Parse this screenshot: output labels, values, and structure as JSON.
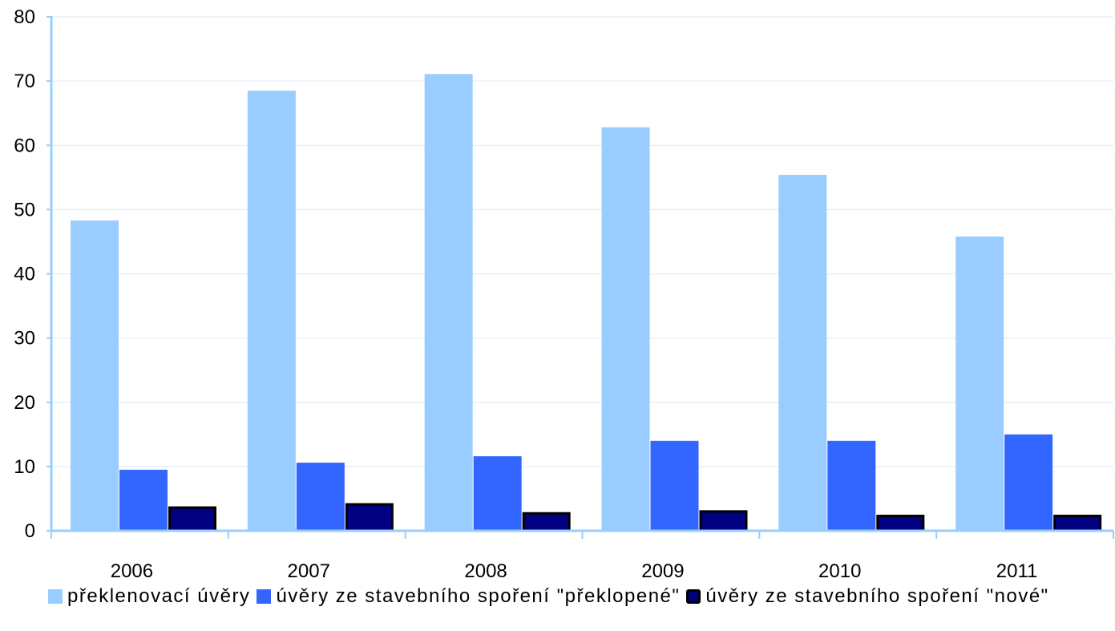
{
  "chart_data": {
    "type": "bar",
    "title": "",
    "xlabel": "",
    "ylabel": "",
    "categories": [
      "2006",
      "2007",
      "2008",
      "2009",
      "2010",
      "2011"
    ],
    "ylim": [
      0,
      80
    ],
    "yticks": [
      "0",
      "10",
      "20",
      "30",
      "40",
      "50",
      "60",
      "70",
      "80"
    ],
    "grid": true,
    "legend_position": "bottom",
    "series": [
      {
        "name": "překlenovací úvěry",
        "color": "#99CCFF",
        "values": [
          48.3,
          68.5,
          71.1,
          62.8,
          55.4,
          45.8
        ]
      },
      {
        "name": "úvěry ze stavebního spoření \"překlopené\"",
        "color": "#3366FF",
        "values": [
          9.5,
          10.6,
          11.6,
          14.0,
          14.0,
          15.0
        ]
      },
      {
        "name": "úvěry ze stavebního spoření \"nové\"",
        "color": "#000080",
        "values": [
          3.8,
          4.3,
          2.9,
          3.2,
          2.5,
          2.5
        ]
      }
    ]
  },
  "colors": {
    "axis": "#99CCFF",
    "grid": "#E6F0FA"
  }
}
